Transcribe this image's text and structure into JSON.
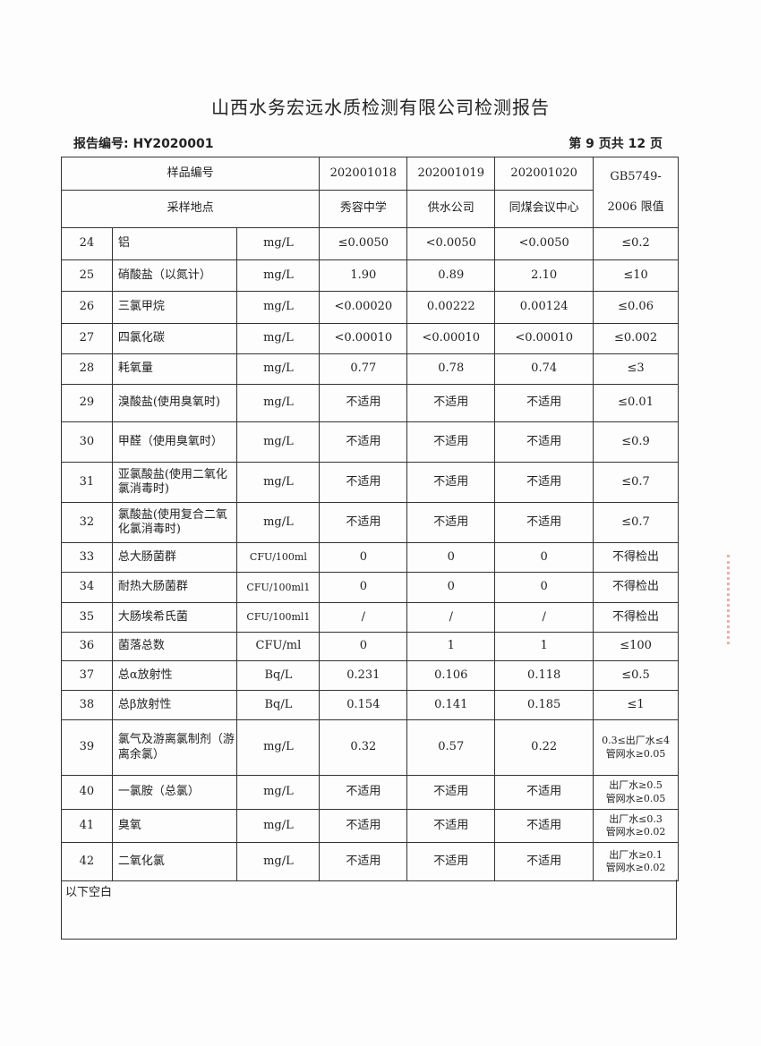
{
  "title": "山西水务宏远水质检测有限公司检测报告",
  "report_no": "报告编号: HY2020001",
  "page_info": "第 9 页共 12 页",
  "header": {
    "sample_no_label": "样品编号",
    "site_label": "采样地点",
    "limit_label": "GB5749-2006 限值",
    "samples": [
      "202001018",
      "202001019",
      "202001020"
    ],
    "sites": [
      "秀容中学",
      "供水公司",
      "同煤会议中心"
    ]
  },
  "rows": [
    {
      "no": "24",
      "name": "铝",
      "unit": "mg/L",
      "v": [
        "≤0.0050",
        "<0.0050",
        "<0.0050"
      ],
      "limit": "≤0.2"
    },
    {
      "no": "25",
      "name": "硝酸盐（以氮计）",
      "unit": "mg/L",
      "v": [
        "1.90",
        "0.89",
        "2.10"
      ],
      "limit": "≤10"
    },
    {
      "no": "26",
      "name": "三氯甲烷",
      "unit": "mg/L",
      "v": [
        "<0.00020",
        "0.00222",
        "0.00124"
      ],
      "limit": "≤0.06"
    },
    {
      "no": "27",
      "name": "四氯化碳",
      "unit": "mg/L",
      "v": [
        "<0.00010",
        "<0.00010",
        "<0.00010"
      ],
      "limit": "≤0.002"
    },
    {
      "no": "28",
      "name": "耗氧量",
      "unit": "mg/L",
      "v": [
        "0.77",
        "0.78",
        "0.74"
      ],
      "limit": "≤3"
    },
    {
      "no": "29",
      "name": "溴酸盐(使用臭氧时)",
      "unit": "mg/L",
      "v": [
        "不适用",
        "不适用",
        "不适用"
      ],
      "limit": "≤0.01"
    },
    {
      "no": "30",
      "name": "甲醛（使用臭氧时）",
      "unit": "mg/L",
      "v": [
        "不适用",
        "不适用",
        "不适用"
      ],
      "limit": "≤0.9"
    },
    {
      "no": "31",
      "name": "亚氯酸盐(使用二氧化氯消毒时)",
      "unit": "mg/L",
      "v": [
        "不适用",
        "不适用",
        "不适用"
      ],
      "limit": "≤0.7"
    },
    {
      "no": "32",
      "name": "氯酸盐(使用复合二氧化氯消毒时)",
      "unit": "mg/L",
      "v": [
        "不适用",
        "不适用",
        "不适用"
      ],
      "limit": "≤0.7"
    },
    {
      "no": "33",
      "name": "总大肠菌群",
      "unit": "CFU/100ml",
      "v": [
        "0",
        "0",
        "0"
      ],
      "limit": "不得检出"
    },
    {
      "no": "34",
      "name": "耐热大肠菌群",
      "unit": "CFU/100ml1",
      "v": [
        "0",
        "0",
        "0"
      ],
      "limit": "不得检出"
    },
    {
      "no": "35",
      "name": "大肠埃希氏菌",
      "unit": "CFU/100ml1",
      "v": [
        "/",
        "/",
        "/"
      ],
      "limit": "不得检出"
    },
    {
      "no": "36",
      "name": "菌落总数",
      "unit": "CFU/ml",
      "v": [
        "0",
        "1",
        "1"
      ],
      "limit": "≤100"
    },
    {
      "no": "37",
      "name": "总α放射性",
      "unit": "Bq/L",
      "v": [
        "0.231",
        "0.106",
        "0.118"
      ],
      "limit": "≤0.5"
    },
    {
      "no": "38",
      "name": "总β放射性",
      "unit": "Bq/L",
      "v": [
        "0.154",
        "0.141",
        "0.185"
      ],
      "limit": "≤1"
    },
    {
      "no": "39",
      "name": "氯气及游离氯制剂（游离余氯）",
      "unit": "mg/L",
      "v": [
        "0.32",
        "0.57",
        "0.22"
      ],
      "limit": "0.3≤出厂水≤4 管网水≥0.05"
    },
    {
      "no": "40",
      "name": "一氯胺（总氯）",
      "unit": "mg/L",
      "v": [
        "不适用",
        "不适用",
        "不适用"
      ],
      "limit": "出厂水≥0.5 管网水≥0.05"
    },
    {
      "no": "41",
      "name": "臭氧",
      "unit": "mg/L",
      "v": [
        "不适用",
        "不适用",
        "不适用"
      ],
      "limit": "出厂水≤0.3 管网水≥0.02"
    },
    {
      "no": "42",
      "name": "二氧化氯",
      "unit": "mg/L",
      "v": [
        "不适用",
        "不适用",
        "不适用"
      ],
      "limit": "出厂水≥0.1 管网水≥0.02"
    }
  ],
  "footer_note": "以下空白"
}
